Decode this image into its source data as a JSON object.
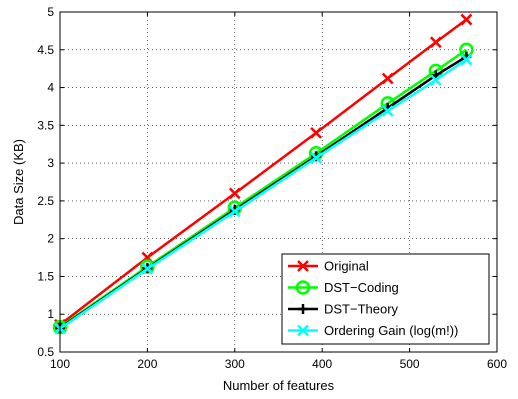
{
  "chart_data": {
    "type": "line",
    "title": "",
    "xlabel": "Number of features",
    "ylabel": "Data Size (KB)",
    "xlim": [
      100,
      600
    ],
    "ylim": [
      0.5,
      5
    ],
    "xticks": [
      "100",
      "200",
      "300",
      "400",
      "500",
      "600"
    ],
    "yticks": [
      "0.5",
      "1",
      "1.5",
      "2",
      "2.5",
      "3",
      "3.5",
      "4",
      "4.5",
      "5"
    ],
    "grid": true,
    "legend_position": "bottom-right",
    "x": [
      100,
      200,
      300,
      393,
      475,
      530,
      565
    ],
    "series": [
      {
        "name": "Original",
        "color": "#ff0000",
        "marker": "x",
        "values": [
          0.86,
          1.75,
          2.6,
          3.4,
          4.12,
          4.6,
          4.9
        ]
      },
      {
        "name": "DST−Coding",
        "color": "#00ff00",
        "marker": "o",
        "values": [
          0.83,
          1.63,
          2.41,
          3.13,
          3.79,
          4.22,
          4.5
        ]
      },
      {
        "name": "DST−Theory",
        "color": "#000000",
        "marker": "+",
        "values": [
          0.82,
          1.61,
          2.38,
          3.09,
          3.73,
          4.16,
          4.41
        ]
      },
      {
        "name": "Ordering Gain (log(m!))",
        "color": "#00ffff",
        "marker": "x",
        "values": [
          0.81,
          1.6,
          2.36,
          3.07,
          3.69,
          4.1,
          4.37
        ]
      }
    ]
  }
}
